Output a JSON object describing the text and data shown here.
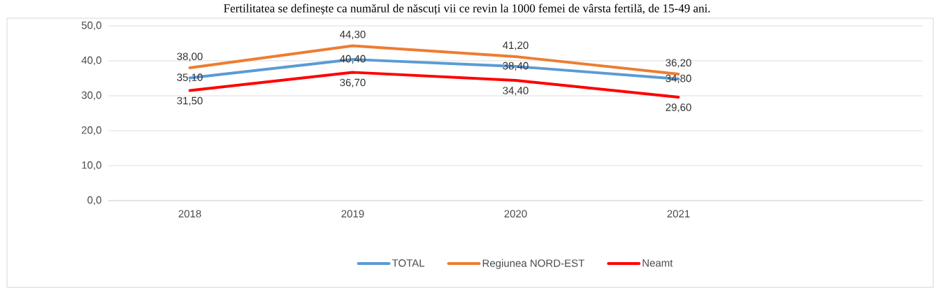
{
  "chart_data": {
    "type": "line",
    "title": "Fertilitatea se definește ca numărul de născuți vii ce revin la 1000 femei de vârsta fertilă, de 15-49 ani.",
    "categories": [
      "2018",
      "2019",
      "2020",
      "2021",
      null
    ],
    "series": [
      {
        "name": "TOTAL",
        "color": "#5b9bd5",
        "values": [
          35.1,
          40.4,
          38.4,
          34.8,
          null
        ],
        "value_labels": [
          "35,10",
          "40,40",
          "38,40",
          "34,80",
          null
        ]
      },
      {
        "name": "Regiunea NORD-EST",
        "color": "#ed7d31",
        "values": [
          38.0,
          44.3,
          41.2,
          36.2,
          null
        ],
        "value_labels": [
          "38,00",
          "44,30",
          "41,20",
          "36,20",
          null
        ]
      },
      {
        "name": "Neamt",
        "color": "#ff0000",
        "values": [
          31.5,
          36.7,
          34.4,
          29.6,
          null
        ],
        "value_labels": [
          "31,50",
          "36,70",
          "34,40",
          "29,60",
          null
        ]
      }
    ],
    "ylim": [
      0,
      50
    ],
    "yticks": [
      {
        "value": 0,
        "label": "0,0"
      },
      {
        "value": 10,
        "label": "10,0"
      },
      {
        "value": 20,
        "label": "20,0"
      },
      {
        "value": 30,
        "label": "30,0"
      },
      {
        "value": 40,
        "label": "40,0"
      },
      {
        "value": 50,
        "label": "50,0"
      }
    ],
    "grid": "y",
    "legend": "bottom",
    "marker": "none",
    "line_style": "solid"
  }
}
